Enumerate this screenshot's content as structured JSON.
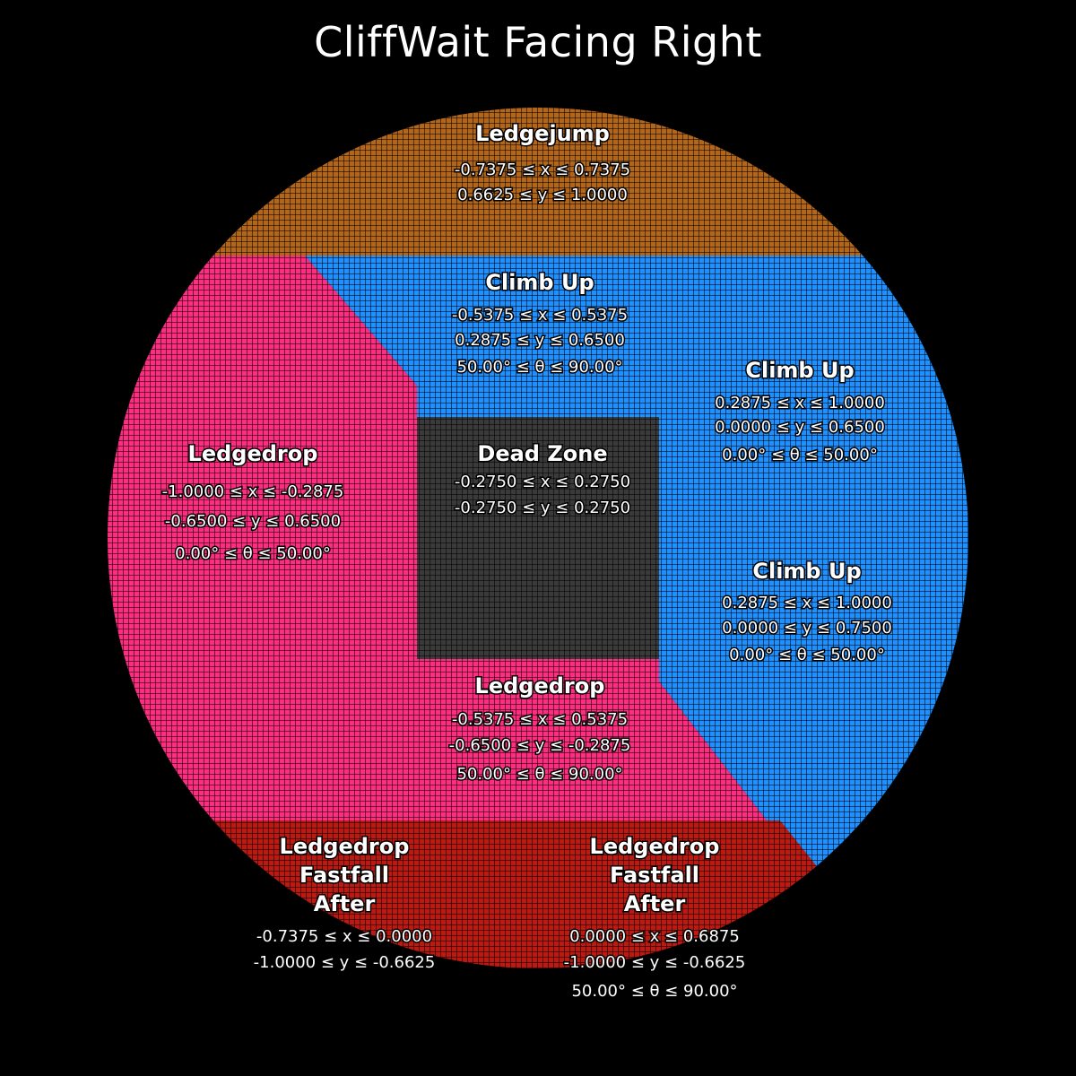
{
  "title": "CliffWait Facing Right",
  "colors": {
    "ledgejump": "#b3661a",
    "climb_up": "#1e90ff",
    "ledgedrop": "#ff2d80",
    "fastfall": "#bb1a12",
    "dead_zone": "#3a3a3a",
    "background": "#000000"
  },
  "regions": [
    {
      "id": "ledgejump",
      "title": [
        "Ledgejump"
      ],
      "lines": [
        "-0.7375 ≤ x ≤ 0.7375",
        "0.6625 ≤ y ≤ 1.0000"
      ]
    },
    {
      "id": "climb-up-center",
      "title": [
        "Climb Up"
      ],
      "lines": [
        "-0.5375 ≤ x ≤ 0.5375",
        "0.2875 ≤ y ≤ 0.6500",
        "50.00° ≤ θ ≤ 90.00°"
      ]
    },
    {
      "id": "climb-up-right-upper",
      "title": [
        "Climb Up"
      ],
      "lines": [
        "0.2875 ≤ x ≤ 1.0000",
        "0.0000 ≤ y ≤ 0.6500",
        "0.00° ≤ θ ≤ 50.00°"
      ]
    },
    {
      "id": "climb-up-right-lower",
      "title": [
        "Climb Up"
      ],
      "lines": [
        "0.2875 ≤ x ≤ 1.0000",
        "0.0000 ≤ y ≤ 0.7500",
        "0.00° ≤ θ ≤ 50.00°"
      ]
    },
    {
      "id": "dead-zone",
      "title": [
        "Dead Zone"
      ],
      "lines": [
        "-0.2750 ≤ x ≤ 0.2750",
        "-0.2750 ≤ y ≤ 0.2750"
      ]
    },
    {
      "id": "ledgedrop-left",
      "title": [
        "Ledgedrop"
      ],
      "lines": [
        "-1.0000 ≤ x ≤ -0.2875",
        "-0.6500 ≤ y ≤ 0.6500",
        "0.00° ≤ θ ≤ 50.00°"
      ]
    },
    {
      "id": "ledgedrop-center",
      "title": [
        "Ledgedrop"
      ],
      "lines": [
        "-0.5375 ≤ x ≤ 0.5375",
        "-0.6500 ≤ y ≤ -0.2875",
        "50.00° ≤ θ ≤ 90.00°"
      ]
    },
    {
      "id": "fastfall-left",
      "title": [
        "Ledgedrop",
        "Fastfall",
        "After"
      ],
      "lines": [
        "-0.7375 ≤ x ≤ 0.0000",
        "-1.0000 ≤ y ≤ -0.6625"
      ]
    },
    {
      "id": "fastfall-right",
      "title": [
        "Ledgedrop",
        "Fastfall",
        "After"
      ],
      "lines": [
        "0.0000 ≤ x ≤ 0.6875",
        "-1.0000 ≤ y ≤ -0.6625",
        "50.00° ≤ θ ≤ 90.00°"
      ]
    }
  ]
}
